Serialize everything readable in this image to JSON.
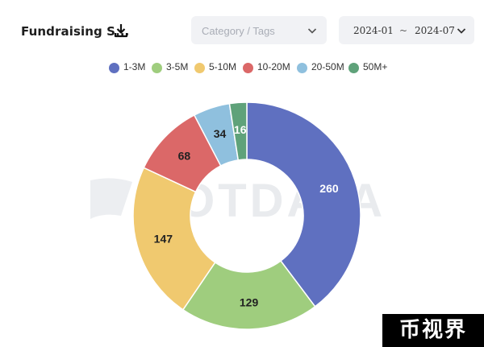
{
  "header": {
    "title": "Fundraising S...",
    "download_icon": "download-icon",
    "category_placeholder": "Category / Tags",
    "date_start": "2024-01",
    "date_separator": "~",
    "date_end": "2024-07"
  },
  "watermark": "OOTDATA",
  "brand": "币视界",
  "chart_data": {
    "type": "pie",
    "variant": "donut",
    "legend_position": "top-center",
    "categories": [
      "1-3M",
      "3-5M",
      "5-10M",
      "10-20M",
      "20-50M",
      "50M+"
    ],
    "values": [
      260,
      129,
      147,
      68,
      34,
      16
    ],
    "colors": [
      "#5f70c0",
      "#9fcd7e",
      "#f0c96f",
      "#db6868",
      "#8fc0de",
      "#5fa27a"
    ],
    "label_colors": [
      "#ffffff",
      "#222222",
      "#222222",
      "#222222",
      "#222222",
      "#ffffff"
    ]
  }
}
